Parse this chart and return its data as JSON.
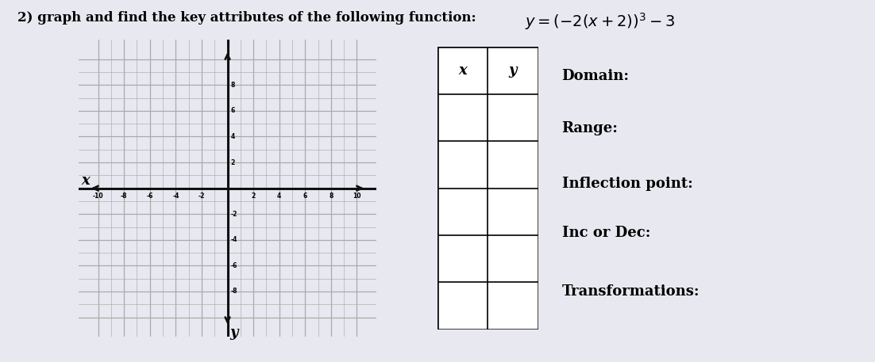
{
  "title": "2) graph and find the key attributes of the following function:",
  "formula": "$y = (-2(x + 2))^3 - 3$",
  "background_color": "#e8e8f0",
  "grid_color_minor": "#aaaaaa",
  "grid_color_major": "#777777",
  "axis_color": "#111111",
  "x_label": "x",
  "y_label": "y",
  "x_min": -10,
  "x_max": 10,
  "y_min": -10,
  "y_max": 10,
  "table_headers": [
    "x",
    "y"
  ],
  "table_rows": 5,
  "attributes": [
    "Domain:",
    "Range:",
    "Inflection point:",
    "Inc or Dec:",
    "Transformations:"
  ],
  "font_size_title": 12,
  "font_size_attr": 12,
  "tick_interval": 2,
  "tick_labels_x": [
    -10,
    -8,
    -6,
    -4,
    -2,
    2,
    4,
    6,
    8,
    10
  ],
  "tick_labels_y": [
    8,
    6,
    4,
    2,
    -2,
    -4,
    -6,
    -8
  ]
}
